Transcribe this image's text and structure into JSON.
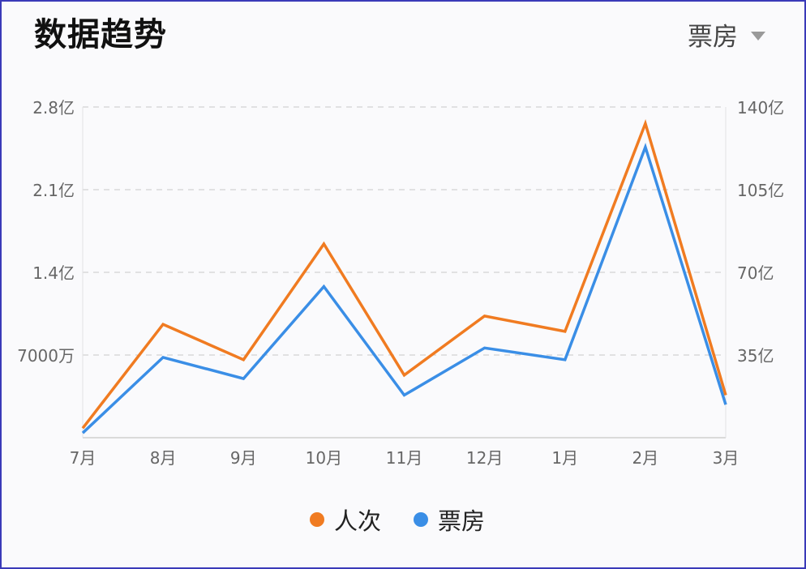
{
  "header": {
    "title": "数据趋势",
    "dropdown_label": "票房"
  },
  "colors": {
    "renci": "#f07b21",
    "piaofang": "#3a8ee6",
    "frame": "#3a3ab8"
  },
  "chart_data": {
    "type": "line",
    "categories": [
      "7月",
      "8月",
      "9月",
      "10月",
      "11月",
      "12月",
      "1月",
      "2月",
      "3月"
    ],
    "series": [
      {
        "name": "人次",
        "axis": "left",
        "values": [
          0.08,
          0.96,
          0.66,
          1.64,
          0.53,
          1.03,
          0.9,
          2.66,
          0.36
        ],
        "color": "#f07b21"
      },
      {
        "name": "票房",
        "axis": "right",
        "values": [
          2,
          34,
          25,
          64,
          18,
          38,
          33,
          123,
          14
        ],
        "color": "#3a8ee6"
      }
    ],
    "left_axis": {
      "ylim": [
        0,
        2.8
      ],
      "ticks": [
        "7000万",
        "1.4亿",
        "2.1亿",
        "2.8亿"
      ]
    },
    "right_axis": {
      "ylim": [
        0,
        140
      ],
      "ticks": [
        "35亿",
        "70亿",
        "105亿",
        "140亿"
      ]
    },
    "grid": true,
    "legend": "bottom"
  }
}
